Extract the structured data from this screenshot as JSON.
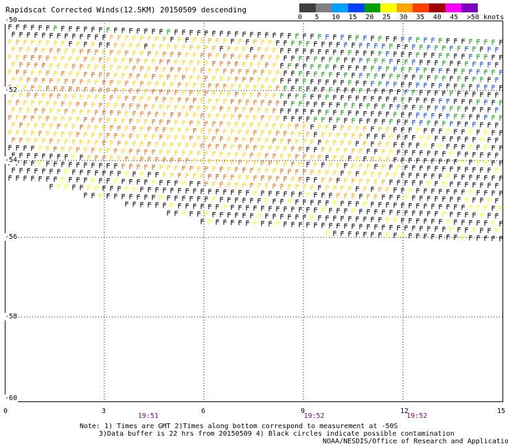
{
  "title": "Rapidscat Corrected Winds(12.5KM) 20150509 descending",
  "colorbar": {
    "labels": [
      "0",
      "5",
      "10",
      "15",
      "20",
      "25",
      "30",
      "35",
      "40",
      "45",
      ">50 knots"
    ],
    "colors": [
      "#404040",
      "#808080",
      "#00a0ff",
      "#0040ff",
      "#00a000",
      "#ffff00",
      "#ffa500",
      "#ff4000",
      "#a00000",
      "#ff00ff",
      "#8000c0"
    ]
  },
  "map": {
    "lat_labels": [
      "-50",
      "-52",
      "-54",
      "-56",
      "-58",
      "-60"
    ],
    "lon_labels": [
      "0",
      "3",
      "6",
      "9",
      "12",
      "15"
    ],
    "time_labels": [
      {
        "text": "19:51",
        "lon": 4.3
      },
      {
        "text": "19:52",
        "lon": 9.3
      },
      {
        "text": "19:52",
        "lon": 12.4
      }
    ]
  },
  "notes": {
    "line1": "Note: 1) Times are GMT 2)Times along bottom correspond to measurement at -50S",
    "line2": "3)Data buffer is 22 hrs from 20150509 4) Black circles indicate possible contamination",
    "line3": "NOAA/NESDIS/Office of Research and Applications"
  }
}
